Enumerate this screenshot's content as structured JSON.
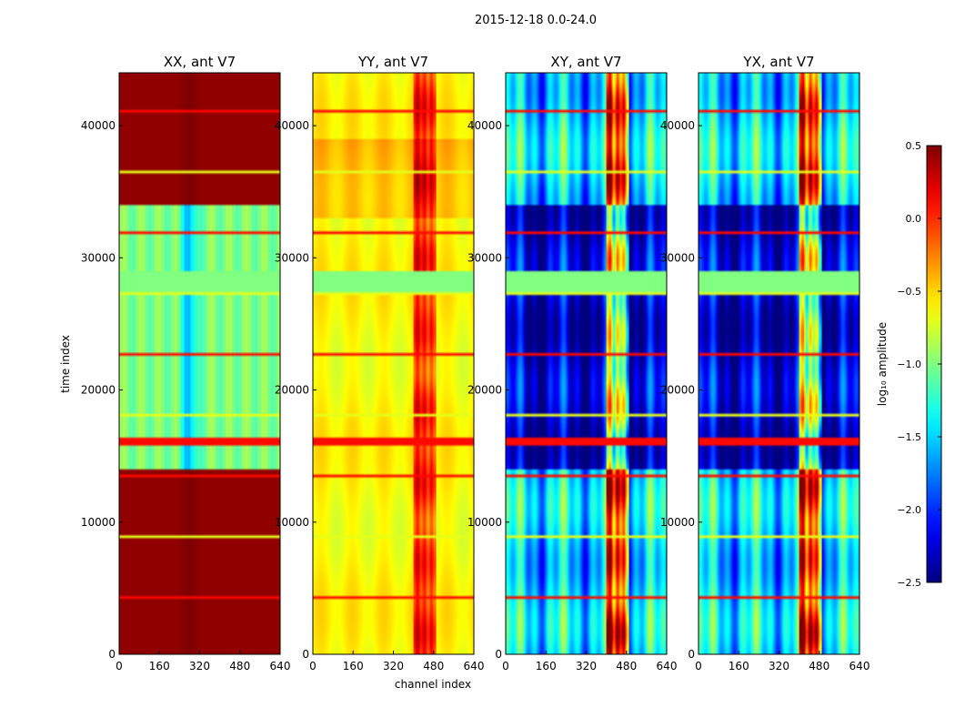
{
  "figure": {
    "suptitle": "2015-12-18 0.0-24.0",
    "xlabel": "channel index",
    "ylabel": "time index"
  },
  "chart_data": {
    "type": "heatmap",
    "suptitle": "2015-12-18 0.0-24.0",
    "xlabel": "channel index",
    "ylabel": "time index",
    "xlim": [
      0,
      640
    ],
    "ylim": [
      0,
      44000
    ],
    "xticks": [
      0,
      160,
      320,
      480,
      640
    ],
    "yticks": [
      0,
      10000,
      20000,
      30000,
      40000
    ],
    "panels": [
      {
        "title": "XX, ant V7",
        "pattern": "xx",
        "base": 0.45
      },
      {
        "title": "YY, ant V7",
        "pattern": "yy",
        "base": -0.65
      },
      {
        "title": "XY, ant V7",
        "pattern": "cross",
        "base": -1.6
      },
      {
        "title": "YX, ant V7",
        "pattern": "cross",
        "base": -1.6
      }
    ],
    "flagged_time_range": [
      27500,
      29000
    ],
    "flag_value": -1.0,
    "rfi_channel_range": [
      400,
      490
    ],
    "colorbar": {
      "label": "log₁₀ amplitude",
      "colormap": "jet",
      "vmin": -2.5,
      "vmax": 0.5,
      "ticks": [
        0.5,
        0.0,
        -0.5,
        -1.0,
        -1.5,
        -2.0,
        -2.5
      ],
      "tick_labels": [
        "0.5",
        "0.0",
        "−0.5",
        "−1.0",
        "−1.5",
        "−2.0",
        "−2.5"
      ]
    }
  }
}
